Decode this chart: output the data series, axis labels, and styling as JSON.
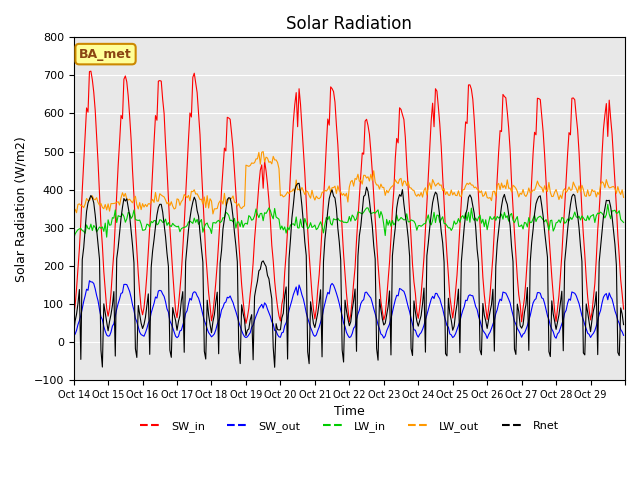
{
  "title": "Solar Radiation",
  "ylabel": "Solar Radiation (W/m2)",
  "xlabel": "Time",
  "ylim": [
    -100,
    800
  ],
  "xlim": [
    0,
    384
  ],
  "label_box": "BA_met",
  "tick_positions": [
    0,
    24,
    48,
    72,
    96,
    120,
    144,
    168,
    192,
    216,
    240,
    264,
    288,
    312,
    336,
    360,
    384
  ],
  "tick_labels": [
    "Oct 14",
    "Oct 15",
    "Oct 16",
    "Oct 17",
    "Oct 18",
    "Oct 19",
    "Oct 20",
    "Oct 21",
    "Oct 22",
    "Oct 23",
    "Oct 24",
    "Oct 25",
    "Oct 26",
    "Oct 27",
    "Oct 28",
    "Oct 29",
    ""
  ],
  "yticks": [
    -100,
    0,
    100,
    200,
    300,
    400,
    500,
    600,
    700,
    800
  ],
  "line_colors": {
    "SW_in": "#ff0000",
    "SW_out": "#0000ff",
    "LW_in": "#00cc00",
    "LW_out": "#ff9900",
    "Rnet": "#000000"
  },
  "line_widths": {
    "SW_in": 1.0,
    "SW_out": 1.0,
    "LW_in": 1.0,
    "LW_out": 1.0,
    "Rnet": 1.0
  },
  "legend_items": [
    "SW_in",
    "SW_out",
    "LW_in",
    "LW_out",
    "Rnet"
  ],
  "background_color": "#e8e8e8",
  "fig_background": "#ffffff",
  "sw_in_peaks": [
    710,
    690,
    685,
    695,
    590,
    475,
    665,
    670,
    580,
    615,
    665,
    675,
    650,
    640,
    640,
    635
  ],
  "sw_out_peaks": [
    160,
    150,
    135,
    130,
    120,
    100,
    145,
    150,
    130,
    140,
    130,
    125,
    130,
    130,
    130,
    130
  ],
  "lw_in_base": [
    280,
    310,
    295,
    295,
    305,
    320,
    290,
    300,
    320,
    300,
    300,
    310,
    310,
    305,
    310,
    320
  ],
  "lw_out_base": [
    345,
    355,
    350,
    360,
    345,
    460,
    375,
    375,
    405,
    390,
    385,
    380,
    380,
    380,
    380,
    385
  ],
  "rnet_peaks": [
    390,
    380,
    360,
    380,
    380,
    210,
    415,
    400,
    400,
    395,
    390,
    385,
    385,
    385,
    385,
    380
  ],
  "rnet_night": [
    -90,
    -70,
    -60,
    -65,
    -75,
    -90,
    -100,
    -80,
    -65,
    -55,
    -55,
    -55,
    -55,
    -55,
    -55,
    -55
  ]
}
